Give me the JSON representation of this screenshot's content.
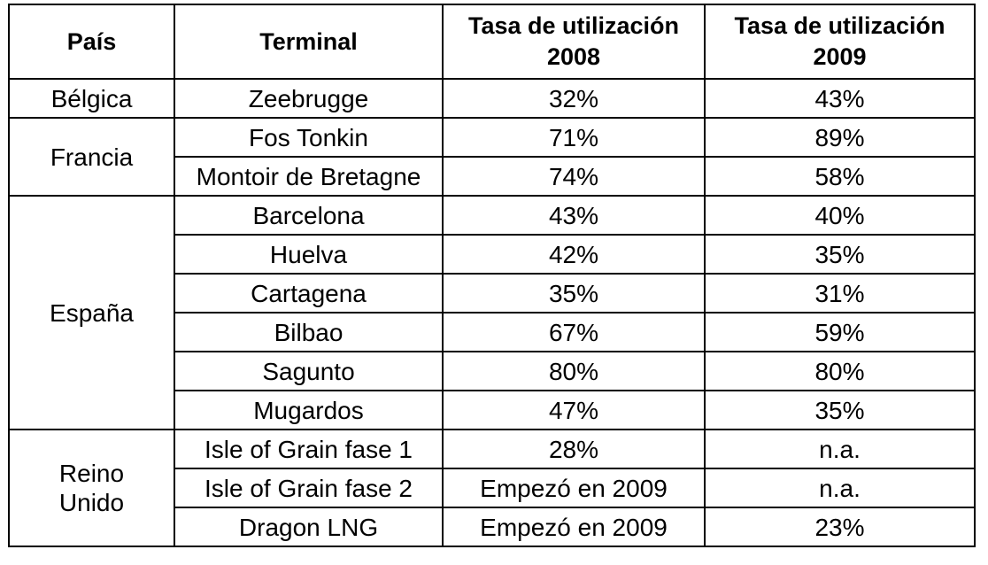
{
  "header": {
    "pais": "País",
    "terminal": "Terminal",
    "tasa_2008": "Tasa de utilización 2008",
    "tasa_2009": "Tasa de utilización 2009"
  },
  "countries": [
    {
      "name": "Bélgica",
      "terminals": [
        {
          "terminal": "Zeebrugge",
          "tasa_2008": "32%",
          "tasa_2009": "43%"
        }
      ]
    },
    {
      "name": "Francia",
      "terminals": [
        {
          "terminal": "Fos Tonkin",
          "tasa_2008": "71%",
          "tasa_2009": "89%"
        },
        {
          "terminal": "Montoir de Bretagne",
          "tasa_2008": "74%",
          "tasa_2009": "58%"
        }
      ]
    },
    {
      "name": "España",
      "terminals": [
        {
          "terminal": "Barcelona",
          "tasa_2008": "43%",
          "tasa_2009": "40%"
        },
        {
          "terminal": "Huelva",
          "tasa_2008": "42%",
          "tasa_2009": "35%"
        },
        {
          "terminal": "Cartagena",
          "tasa_2008": "35%",
          "tasa_2009": "31%"
        },
        {
          "terminal": "Bilbao",
          "tasa_2008": "67%",
          "tasa_2009": "59%"
        },
        {
          "terminal": "Sagunto",
          "tasa_2008": "80%",
          "tasa_2009": "80%"
        },
        {
          "terminal": "Mugardos",
          "tasa_2008": "47%",
          "tasa_2009": "35%"
        }
      ]
    },
    {
      "name": "Reino Unido",
      "terminals": [
        {
          "terminal": "Isle of Grain fase 1",
          "tasa_2008": "28%",
          "tasa_2009": "n.a."
        },
        {
          "terminal": "Isle of Grain fase 2",
          "tasa_2008": "Empezó en 2009",
          "tasa_2009": "n.a."
        },
        {
          "terminal": "Dragon LNG",
          "tasa_2008": "Empezó en 2009",
          "tasa_2009": "23%"
        }
      ]
    }
  ]
}
